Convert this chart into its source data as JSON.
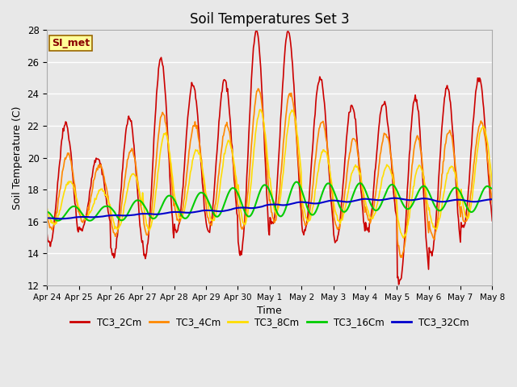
{
  "title": "Soil Temperatures Set 3",
  "xlabel": "Time",
  "ylabel": "Soil Temperature (C)",
  "ylim": [
    12,
    28
  ],
  "yticks": [
    12,
    14,
    16,
    18,
    20,
    22,
    24,
    26,
    28
  ],
  "plot_bg_color": "#e8e8e8",
  "annotation_text": "SI_met",
  "annotation_bg": "#ffff99",
  "annotation_border": "#996600",
  "annotation_text_color": "#880000",
  "series": {
    "TC3_2Cm": {
      "color": "#cc0000",
      "lw": 1.2
    },
    "TC3_4Cm": {
      "color": "#ff8800",
      "lw": 1.2
    },
    "TC3_8Cm": {
      "color": "#ffdd00",
      "lw": 1.2
    },
    "TC3_16Cm": {
      "color": "#00cc00",
      "lw": 1.5
    },
    "TC3_32Cm": {
      "color": "#0000cc",
      "lw": 1.5
    }
  },
  "xtick_labels": [
    "Apr 24",
    "Apr 25",
    "Apr 26",
    "Apr 27",
    "Apr 28",
    "Apr 29",
    "Apr 30",
    "May 1",
    "May 2",
    "May 3",
    "May 4",
    "May 5",
    "May 6",
    "May 7",
    "May 8"
  ],
  "num_days": 14,
  "pts_per_day": 48,
  "peak_heights_2cm": [
    22.1,
    20.0,
    22.5,
    26.2,
    24.6,
    24.9,
    28.0,
    27.9,
    25.0,
    23.3,
    23.5,
    23.8,
    24.5,
    25.0,
    16.0
  ],
  "trough_depths_2cm": [
    14.5,
    15.5,
    13.8,
    13.8,
    15.3,
    15.4,
    13.9,
    15.8,
    15.3,
    14.7,
    15.5,
    12.2,
    14.0,
    15.6,
    15.5
  ],
  "peak_heights_4cm": [
    20.2,
    19.5,
    20.5,
    22.8,
    22.1,
    22.0,
    24.3,
    24.0,
    22.3,
    21.2,
    21.5,
    21.3,
    21.7,
    22.2,
    16.5
  ],
  "trough_depths_4cm": [
    15.5,
    16.0,
    15.2,
    15.2,
    16.0,
    15.8,
    15.5,
    16.0,
    15.8,
    15.5,
    16.0,
    13.8,
    15.0,
    16.0,
    16.2
  ],
  "peak_heights_8cm": [
    18.5,
    18.0,
    19.0,
    21.5,
    20.5,
    21.0,
    23.0,
    23.0,
    20.5,
    19.5,
    19.5,
    19.5,
    19.5,
    22.0,
    17.0
  ],
  "trough_depths_8cm": [
    15.8,
    16.2,
    15.5,
    15.5,
    16.2,
    16.0,
    15.8,
    16.5,
    16.0,
    16.0,
    16.2,
    15.0,
    15.5,
    16.2,
    16.5
  ],
  "mean_16cm": [
    16.5,
    16.5,
    16.7,
    16.9,
    17.0,
    17.2,
    17.3,
    17.4,
    17.4,
    17.5,
    17.5,
    17.5,
    17.4,
    17.4,
    17.3
  ],
  "amp_16cm": [
    0.5,
    0.5,
    0.7,
    0.8,
    0.9,
    1.0,
    1.1,
    1.2,
    1.1,
    1.0,
    0.9,
    0.8,
    0.8,
    0.9,
    0.5
  ],
  "mean_32cm": [
    16.2,
    16.3,
    16.4,
    16.5,
    16.6,
    16.7,
    16.9,
    17.1,
    17.2,
    17.3,
    17.4,
    17.4,
    17.3,
    17.3,
    17.2
  ],
  "amp_32cm": [
    0.05,
    0.05,
    0.05,
    0.08,
    0.08,
    0.1,
    0.1,
    0.12,
    0.12,
    0.12,
    0.1,
    0.1,
    0.1,
    0.1,
    0.08
  ]
}
